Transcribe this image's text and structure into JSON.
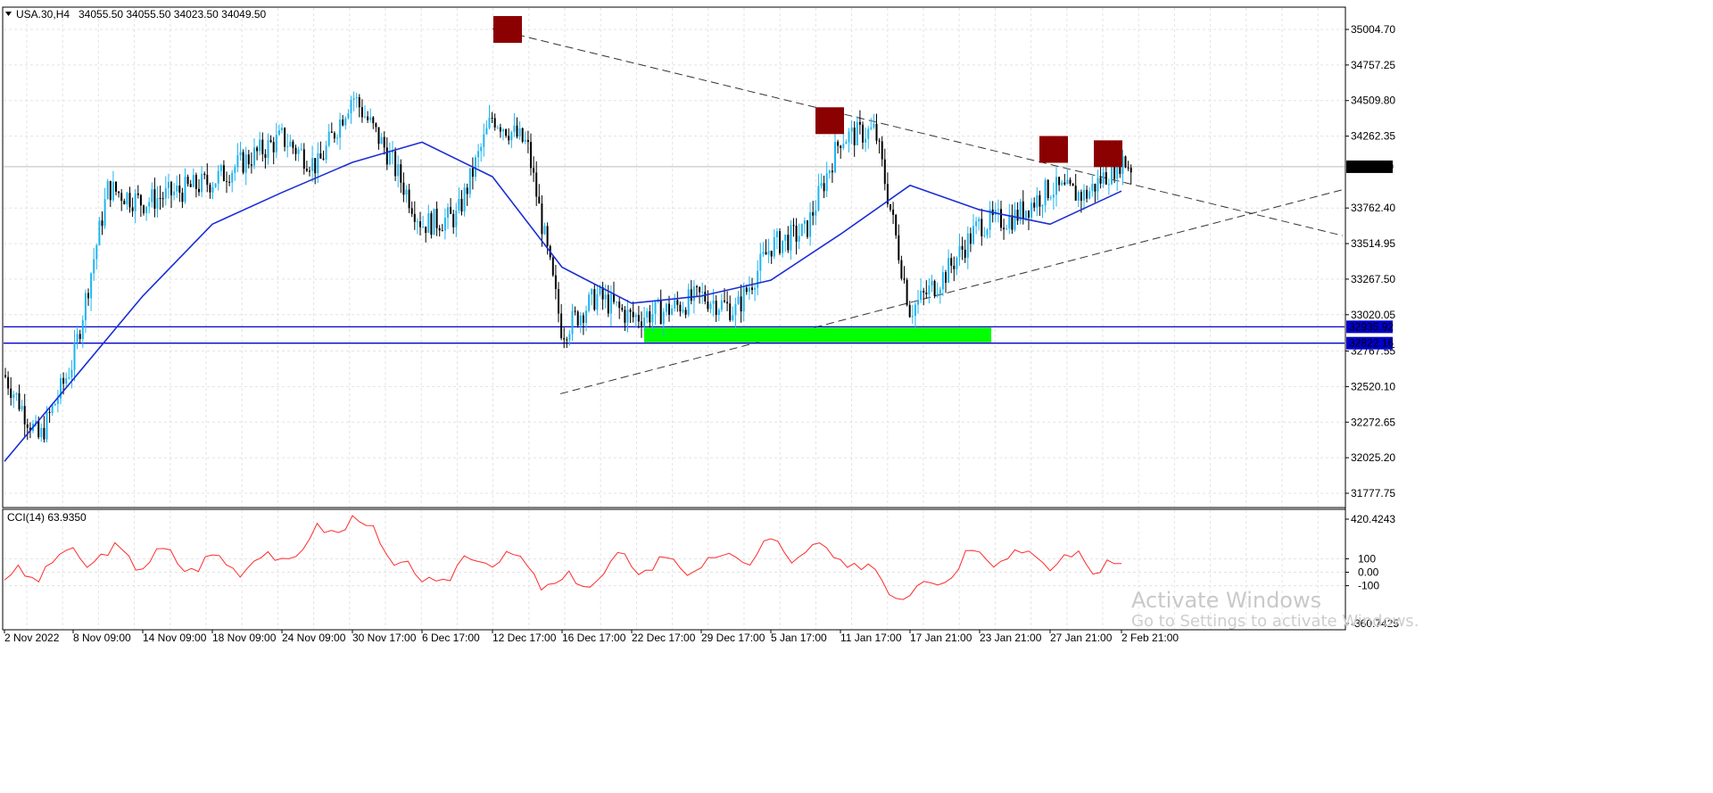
{
  "header": {
    "symbol": "USA.30,H4",
    "ohlc": "34055.50 34055.50 34023.50 34049.50"
  },
  "indicator": {
    "label": "CCI(14) 63.9350",
    "ticks": [
      "420.4243",
      "100",
      "0.00",
      "-100",
      "-360.7425"
    ],
    "tick_values": [
      420.4243,
      100,
      0,
      -100,
      -360.7425
    ]
  },
  "price_axis": {
    "ticks": [
      "35004.70",
      "34757.25",
      "34509.80",
      "34262.35",
      "33762.40",
      "33514.95",
      "33267.50",
      "33020.05",
      "32767.55",
      "32520.10",
      "32272.65",
      "32025.20",
      "31777.75"
    ],
    "tick_values": [
      35004.7,
      34757.25,
      34509.8,
      34262.35,
      33762.4,
      33514.95,
      33267.5,
      33020.05,
      32767.55,
      32520.1,
      32272.65,
      32025.2,
      31777.75
    ],
    "current_price_label": "34049.50",
    "level_labels": [
      "32935.92",
      "32822.16"
    ],
    "colors": {
      "current": "#000000",
      "level": "#0000cc"
    }
  },
  "time_axis": {
    "ticks": [
      "2 Nov 2022",
      "8 Nov 09:00",
      "14 Nov 09:00",
      "18 Nov 09:00",
      "24 Nov 09:00",
      "30 Nov 17:00",
      "6 Dec 17:00",
      "12 Dec 17:00",
      "16 Dec 17:00",
      "22 Dec 17:00",
      "29 Dec 17:00",
      "5 Jan 17:00",
      "11 Jan 17:00",
      "17 Jan 21:00",
      "23 Jan 21:00",
      "27 Jan 21:00",
      "2 Feb 21:00"
    ]
  },
  "watermark": {
    "line1": "Activate Windows",
    "line2": "Go to Settings to activate Windows."
  },
  "chart_data": {
    "type": "line",
    "title": "USA.30,H4",
    "xlabel": "",
    "ylabel": "",
    "x_range": [
      "2 Nov 2022",
      "2 Feb 2023"
    ],
    "ylim": [
      31700,
      35100
    ],
    "grid": true,
    "colors": {
      "candles": "#1fb5f0",
      "ma": "#1a2ed6",
      "cci": "#ff2a2a",
      "support_zone": "#00ff00",
      "pivot_markers": "#8b0000",
      "levels": "#0000cc"
    },
    "series": [
      {
        "name": "",
        "x": [
          "2 Nov 2022",
          "4 Nov",
          "8 Nov 09:00",
          "10 Nov",
          "14 Nov 09:00",
          "18 Nov 09:00",
          "24 Nov 09:00",
          "28 Nov",
          "30 Nov 17:00",
          "2 Dec",
          "6 Dec 17:00",
          "8 Dec",
          "12 Dec 17:00",
          "14 Dec",
          "16 Dec 17:00",
          "20 Dec",
          "22 Dec 17:00",
          "27 Dec",
          "29 Dec 17:00",
          "3 Jan",
          "5 Jan 17:00",
          "9 Jan",
          "11 Jan 17:00",
          "13 Jan",
          "17 Jan 21:00",
          "19 Jan",
          "23 Jan 21:00",
          "25 Jan",
          "27 Jan 21:00",
          "31 Jan",
          "2 Feb 21:00",
          "3 Feb"
        ],
        "values": [
          32600,
          32150,
          32700,
          33900,
          33800,
          33950,
          34250,
          34050,
          34550,
          34150,
          33650,
          33700,
          34400,
          34200,
          32900,
          33150,
          33000,
          33050,
          33150,
          33050,
          33500,
          33600,
          34250,
          34300,
          33050,
          33300,
          33650,
          33700,
          33900,
          33850,
          34100,
          34049.5
        ]
      },
      {
        "name": "",
        "x": [
          "2 Nov 2022",
          "8 Nov 09:00",
          "14 Nov 09:00",
          "18 Nov 09:00",
          "24 Nov 09:00",
          "30 Nov 17:00",
          "6 Dec 17:00",
          "12 Dec 17:00",
          "16 Dec 17:00",
          "22 Dec 17:00",
          "29 Dec 17:00",
          "5 Jan 17:00",
          "11 Jan 17:00",
          "17 Jan 21:00",
          "23 Jan 21:00",
          "27 Jan 21:00",
          "2 Feb 21:00"
        ],
        "values": [
          32000,
          32570,
          33150,
          33650,
          33870,
          34080,
          34220,
          33980,
          33350,
          33100,
          33150,
          33260,
          33580,
          33920,
          33750,
          33650,
          33880
        ]
      }
    ],
    "cci": {
      "label": "CCI(14) 63.9350",
      "ylim": [
        -360.7425,
        420.4243
      ],
      "x": [
        "2 Nov 2022",
        "8 Nov 09:00",
        "14 Nov 09:00",
        "18 Nov 09:00",
        "24 Nov 09:00",
        "30 Nov 17:00",
        "6 Dec 17:00",
        "12 Dec 17:00",
        "16 Dec 17:00",
        "22 Dec 17:00",
        "29 Dec 17:00",
        "5 Jan 17:00",
        "11 Jan 17:00",
        "17 Jan 21:00",
        "23 Jan 21:00",
        "27 Jan 21:00",
        "2 Feb 21:00"
      ],
      "values": [
        -80,
        120,
        110,
        60,
        100,
        420,
        -100,
        150,
        -120,
        80,
        40,
        180,
        110,
        -160,
        160,
        90,
        64
      ]
    },
    "horizontal_levels": [
      32935.92,
      32822.16
    ],
    "support_zone": {
      "from": "22 Dec 17:00",
      "to": "19 Jan",
      "low": 32822.16,
      "high": 32935.92
    },
    "trendlines": [
      {
        "from": {
          "x": "12 Dec 17:00",
          "y": 35010
        },
        "to": {
          "x": "9 Feb",
          "y": 33570
        }
      },
      {
        "from": {
          "x": "15 Dec",
          "y": 32470
        },
        "to": {
          "x": "9 Feb",
          "y": 33890
        }
      }
    ],
    "pivot_markers": [
      "12 Dec 17:00",
      "11 Jan 17:00",
      "27 Jan 21:00",
      "2 Feb 21:00"
    ]
  }
}
